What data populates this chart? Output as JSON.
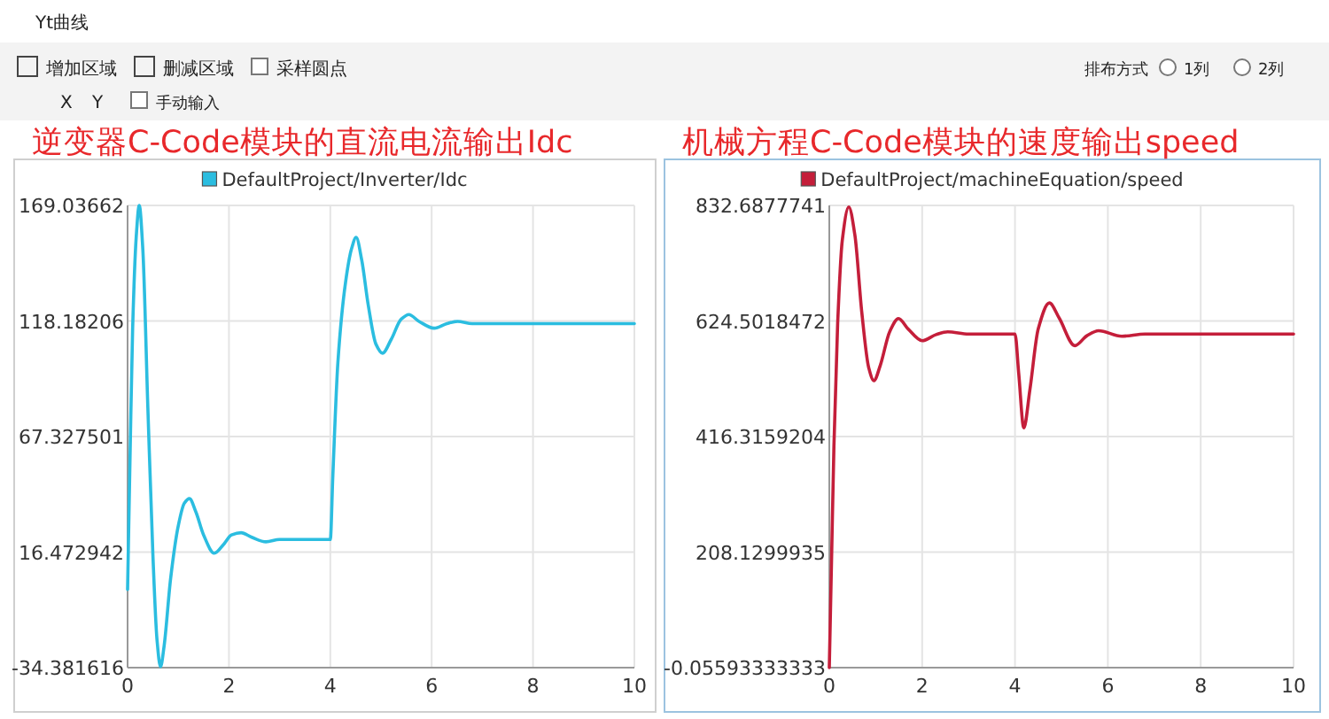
{
  "chart_data": [
    {
      "type": "other",
      "annotations": [
        "Yt曲线",
        "增加区域",
        "删减区域",
        "采样圆点",
        "排布方式",
        "1列",
        "2列",
        "X",
        "Y",
        "手动输入"
      ]
    },
    {
      "type": "line",
      "title": "逆变器C-Code模块的直流电流输出Idc",
      "legend": "top",
      "grid": true,
      "xlim": [
        0,
        10
      ],
      "xticks": [
        0,
        2,
        4,
        6,
        8,
        10
      ],
      "ylim": [
        -34.381616,
        169.03662
      ],
      "yticks": [
        -34.381616,
        16.472942,
        67.327501,
        118.18206,
        169.03662
      ],
      "series": [
        {
          "name": "DefaultProject/Inverter/Idc",
          "color": "#2bbde0",
          "x": [
            0,
            0.05,
            0.1,
            0.17,
            0.23,
            0.3,
            0.4,
            0.5,
            0.58,
            0.65,
            0.72,
            0.85,
            1.0,
            1.12,
            1.22,
            1.35,
            1.5,
            1.71,
            1.9,
            2.05,
            2.24,
            2.45,
            2.73,
            3.0,
            3.5,
            4.0,
            4.05,
            4.15,
            4.3,
            4.42,
            4.51,
            4.62,
            4.75,
            4.9,
            5.03,
            5.2,
            5.4,
            5.55,
            5.75,
            6.05,
            6.3,
            6.51,
            6.8,
            7.2,
            8,
            10
          ],
          "values": [
            0,
            60,
            115,
            155,
            169,
            150,
            80,
            15,
            -22,
            -34,
            -25,
            5,
            28,
            38,
            40,
            34,
            24,
            16,
            20,
            24,
            25,
            23,
            21,
            22,
            22,
            22,
            50,
            100,
            135,
            150,
            155,
            145,
            125,
            108,
            104,
            110,
            119,
            121,
            118,
            115,
            117,
            118,
            117,
            117,
            117,
            117
          ]
        }
      ]
    },
    {
      "type": "line",
      "title": "机械方程C-Code模块的速度输出speed",
      "legend": "top",
      "grid": true,
      "xlim": [
        0,
        10
      ],
      "xticks": [
        0,
        2,
        4,
        6,
        8,
        10
      ],
      "ylim": [
        -0.05593333333,
        832.6877741
      ],
      "yticks": [
        -0.05593333333,
        208.1299935,
        416.3159204,
        624.5018472,
        832.6877741
      ],
      "series": [
        {
          "name": "DefaultProject/machineEquation/speed",
          "color": "#c41e3a",
          "x": [
            0,
            0.05,
            0.1,
            0.18,
            0.28,
            0.42,
            0.55,
            0.7,
            0.85,
            0.96,
            1.1,
            1.3,
            1.49,
            1.7,
            2.0,
            2.3,
            2.55,
            3.0,
            4.0,
            4.08,
            4.19,
            4.32,
            4.5,
            4.74,
            4.95,
            5.29,
            5.55,
            5.8,
            6.3,
            6.8,
            10
          ],
          "values": [
            0,
            200,
            400,
            620,
            770,
            830,
            780,
            640,
            540,
            517,
            545,
            605,
            629,
            610,
            589,
            600,
            605,
            601,
            601,
            530,
            432,
            500,
            610,
            657,
            630,
            580,
            598,
            607,
            597,
            601,
            601
          ]
        }
      ]
    }
  ]
}
